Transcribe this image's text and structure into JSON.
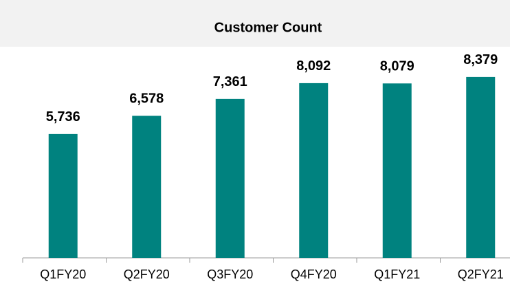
{
  "chart_data": {
    "type": "bar",
    "title": "Customer Count",
    "categories": [
      "Q1FY20",
      "Q2FY20",
      "Q3FY20",
      "Q4FY20",
      "Q1FY21",
      "Q2FY21"
    ],
    "values": [
      5736,
      6578,
      7361,
      8092,
      8079,
      8379
    ],
    "value_labels": [
      "5,736",
      "6,578",
      "7,361",
      "8,092",
      "8,079",
      "8,379"
    ],
    "color": "#00827f",
    "ylim": [
      0,
      10000
    ]
  }
}
